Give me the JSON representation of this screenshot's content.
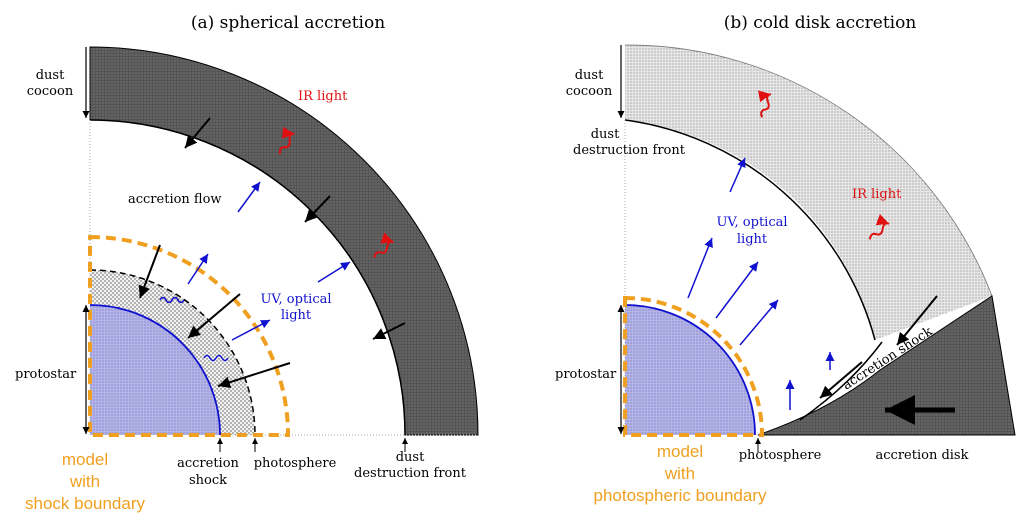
{
  "panel_a": {
    "title": "(a) spherical accretion",
    "labels": {
      "dust_cocoon_1": "dust",
      "dust_cocoon_2": "cocoon",
      "ir_light": "IR light",
      "accretion_flow": "accretion flow",
      "uv_1": "UV, optical",
      "uv_2": "light",
      "protostar": "protostar",
      "accretion_shock_1": "accretion",
      "accretion_shock_2": "shock",
      "photosphere": "photosphere",
      "dust_front_1": "dust",
      "dust_front_2": "destruction front",
      "model_1": "model",
      "model_2": "with",
      "model_3": "shock boundary"
    }
  },
  "panel_b": {
    "title": "(b) cold disk accretion",
    "labels": {
      "dust_cocoon_1": "dust",
      "dust_cocoon_2": "cocoon",
      "dust_front_1": "dust",
      "dust_front_2": "destruction front",
      "ir_light": "IR light",
      "uv_1": "UV, optical",
      "uv_2": "light",
      "protostar": "protostar",
      "accretion_shock": "accretion shock",
      "photosphere": "photosphere",
      "accretion_disk": "accretion disk",
      "model_1": "model",
      "model_2": "with",
      "model_3": "photospheric boundary"
    }
  },
  "colors": {
    "dark_gray": "#5a5a5a",
    "light_gray": "#dcdcdc",
    "stipple": "#e2e2e2",
    "star_fill": "#b8b8e4",
    "orange": "#f0a020",
    "blue": "#1010d0",
    "red": "#e01010"
  }
}
